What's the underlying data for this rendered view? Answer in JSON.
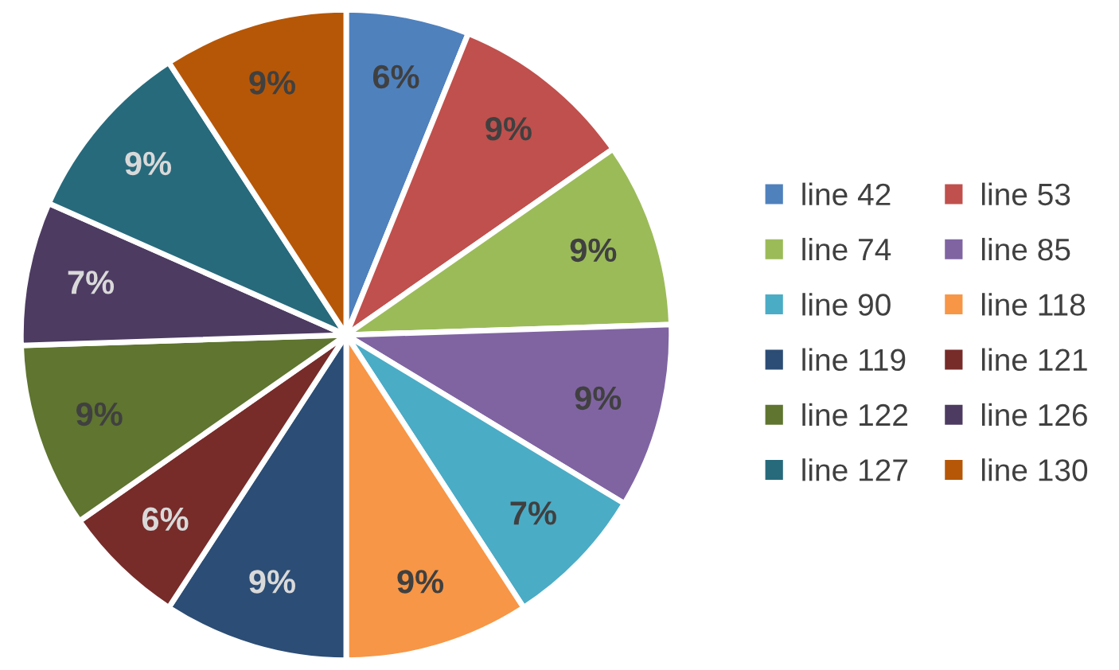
{
  "chart_data": {
    "type": "pie",
    "categories": [
      "line 42",
      "line 53",
      "line 74",
      "line 85",
      "line 90",
      "line 118",
      "line 119",
      "line 121",
      "line 122",
      "line 126",
      "line 127",
      "line 130"
    ],
    "values": [
      6,
      9,
      9,
      9,
      7,
      9,
      9,
      6,
      9,
      7,
      9,
      9
    ],
    "value_labels": [
      "6%",
      "9%",
      "9%",
      "9%",
      "7%",
      "9%",
      "9%",
      "6%",
      "9%",
      "7%",
      "9%",
      "9%"
    ],
    "colors": [
      "#4f81bd",
      "#c0504d",
      "#9bbb59",
      "#8064a2",
      "#4bacc6",
      "#f79646",
      "#2c4d75",
      "#772c2a",
      "#5f7530",
      "#4d3b62",
      "#276a7c",
      "#b65708"
    ],
    "legend": "right"
  }
}
